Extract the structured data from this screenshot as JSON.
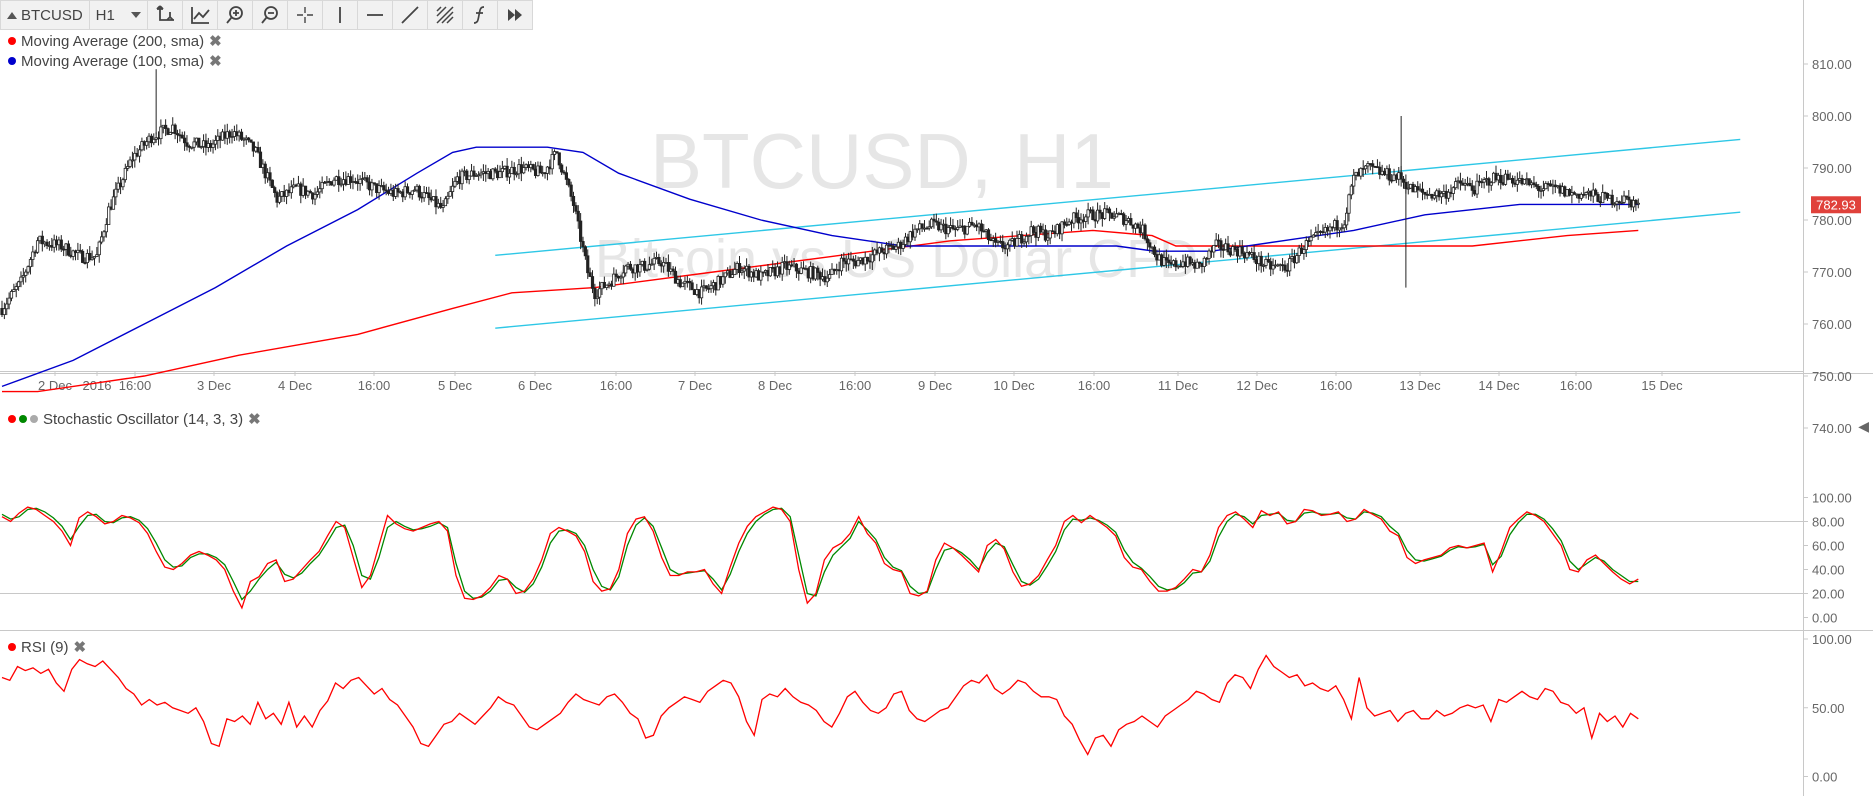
{
  "toolbar": {
    "symbol": "BTCUSD",
    "timeframe": "H1",
    "icons": [
      "crosshair-axis-icon",
      "trend-chart-icon",
      "zoom-in-icon",
      "zoom-out-icon",
      "cursor-cross-icon",
      "vertical-line-icon",
      "horizontal-line-icon",
      "trend-line-icon",
      "fibonacci-icon",
      "function-icon",
      "fast-forward-icon"
    ]
  },
  "legend": {
    "ma200": {
      "label": "Moving Average (200, sma)",
      "color": "#ff0000"
    },
    "ma100": {
      "label": "Moving Average (100, sma)",
      "color": "#0000cc"
    },
    "stoch": {
      "label": "Stochastic Oscillator (14, 3, 3)",
      "colors": [
        "#ff0000",
        "#008800",
        "#aaaaaa"
      ]
    },
    "rsi": {
      "label": "RSI (9)",
      "color": "#ff0000"
    }
  },
  "watermark": {
    "symbol": "BTCUSD, H1",
    "description": "Bitcoin vs US Dollar CFD"
  },
  "chart_data": [
    {
      "type": "candlestick",
      "name": "price",
      "ylim": [
        740,
        815
      ],
      "y_ticks": [
        "810.00",
        "800.00",
        "790.00",
        "780.00",
        "770.00",
        "760.00",
        "750.00",
        "740.00"
      ],
      "last_price": "782.93",
      "last_price_color": "#e0413b",
      "x_ticks": [
        "2 Dec",
        "2016",
        "16:00",
        "3 Dec",
        "4 Dec",
        "16:00",
        "5 Dec",
        "6 Dec",
        "16:00",
        "7 Dec",
        "8 Dec",
        "16:00",
        "9 Dec",
        "10 Dec",
        "16:00",
        "11 Dec",
        "12 Dec",
        "16:00",
        "13 Dec",
        "14 Dec",
        "16:00",
        "15 Dec"
      ],
      "close_path": [
        [
          0,
          763
        ],
        [
          8,
          768
        ],
        [
          15,
          776
        ],
        [
          25,
          775
        ],
        [
          33,
          773
        ],
        [
          40,
          773
        ],
        [
          45,
          782
        ],
        [
          55,
          792
        ],
        [
          63,
          796
        ],
        [
          72,
          798
        ],
        [
          78,
          795
        ],
        [
          87,
          794
        ],
        [
          97,
          797
        ],
        [
          103,
          795
        ],
        [
          107,
          793
        ],
        [
          116,
          784
        ],
        [
          124,
          786
        ],
        [
          132,
          785
        ],
        [
          140,
          788
        ],
        [
          148,
          788
        ],
        [
          158,
          786
        ],
        [
          166,
          785
        ],
        [
          174,
          786
        ],
        [
          180,
          784
        ],
        [
          186,
          782
        ],
        [
          192,
          788
        ],
        [
          200,
          789
        ],
        [
          210,
          789
        ],
        [
          218,
          790
        ],
        [
          228,
          789
        ],
        [
          234,
          793
        ],
        [
          241,
          783
        ],
        [
          247,
          770
        ],
        [
          250,
          766
        ],
        [
          256,
          768
        ],
        [
          263,
          771
        ],
        [
          270,
          771
        ],
        [
          278,
          772
        ],
        [
          286,
          768
        ],
        [
          295,
          766
        ],
        [
          302,
          768
        ],
        [
          311,
          771
        ],
        [
          320,
          769
        ],
        [
          330,
          771
        ],
        [
          340,
          770
        ],
        [
          349,
          769
        ],
        [
          354,
          772
        ],
        [
          360,
          772
        ],
        [
          366,
          773
        ],
        [
          371,
          774
        ],
        [
          378,
          775
        ],
        [
          385,
          778
        ],
        [
          392,
          779
        ],
        [
          402,
          778
        ],
        [
          411,
          779
        ],
        [
          419,
          775
        ],
        [
          425,
          775
        ],
        [
          434,
          778
        ],
        [
          442,
          777
        ],
        [
          450,
          780
        ],
        [
          459,
          781
        ],
        [
          468,
          781
        ],
        [
          475,
          780
        ],
        [
          481,
          778
        ],
        [
          487,
          773
        ],
        [
          492,
          771
        ],
        [
          498,
          772
        ],
        [
          505,
          771
        ],
        [
          512,
          775
        ],
        [
          523,
          774
        ],
        [
          534,
          771
        ],
        [
          542,
          771
        ],
        [
          549,
          775
        ],
        [
          556,
          777
        ],
        [
          566,
          780
        ],
        [
          570,
          788
        ],
        [
          576,
          790
        ],
        [
          582,
          789
        ],
        [
          590,
          788
        ],
        [
          594,
          786
        ],
        [
          600,
          785
        ],
        [
          608,
          785
        ],
        [
          615,
          787
        ],
        [
          621,
          786
        ],
        [
          628,
          788
        ],
        [
          636,
          788
        ],
        [
          643,
          787
        ],
        [
          649,
          786
        ],
        [
          655,
          786
        ],
        [
          662,
          785
        ],
        [
          668,
          785
        ],
        [
          677,
          784
        ],
        [
          684,
          784
        ],
        [
          690,
          783
        ]
      ],
      "ma200": [
        [
          0,
          747
        ],
        [
          15,
          747
        ],
        [
          30,
          748
        ],
        [
          60,
          750
        ],
        [
          100,
          754
        ],
        [
          150,
          758
        ],
        [
          190,
          763
        ],
        [
          215,
          766
        ],
        [
          250,
          767
        ],
        [
          300,
          770
        ],
        [
          350,
          773
        ],
        [
          400,
          776
        ],
        [
          430,
          777
        ],
        [
          460,
          778
        ],
        [
          485,
          777
        ],
        [
          495,
          775
        ],
        [
          540,
          775
        ],
        [
          580,
          775
        ],
        [
          620,
          775
        ],
        [
          660,
          777
        ],
        [
          690,
          778
        ]
      ],
      "ma100": [
        [
          0,
          748
        ],
        [
          30,
          753
        ],
        [
          60,
          760
        ],
        [
          90,
          767
        ],
        [
          120,
          775
        ],
        [
          150,
          782
        ],
        [
          175,
          789
        ],
        [
          190,
          793
        ],
        [
          200,
          794
        ],
        [
          230,
          794
        ],
        [
          245,
          793
        ],
        [
          260,
          789
        ],
        [
          290,
          784
        ],
        [
          320,
          780
        ],
        [
          350,
          777
        ],
        [
          380,
          775
        ],
        [
          410,
          775
        ],
        [
          440,
          775
        ],
        [
          470,
          775
        ],
        [
          486,
          774
        ],
        [
          510,
          774
        ],
        [
          540,
          776
        ],
        [
          570,
          778
        ],
        [
          600,
          781
        ],
        [
          640,
          783
        ],
        [
          670,
          783
        ],
        [
          690,
          783
        ]
      ],
      "channel_upper": {
        "from": [
          208,
          773.2
        ],
        "to": [
          733,
          795.5
        ]
      },
      "channel_lower": {
        "from": [
          208,
          759.2
        ],
        "to": [
          733,
          781.5
        ]
      },
      "high_spikes": [
        [
          65,
          809
        ],
        [
          590,
          800
        ],
        [
          592,
          767
        ]
      ]
    },
    {
      "type": "line",
      "name": "Stochastic Oscillator (14, 3, 3)",
      "ylim": [
        -5,
        103
      ],
      "y_ticks": [
        "100.00",
        "80.00",
        "60.00",
        "40.00",
        "20.00",
        "0.00"
      ],
      "levels": [
        80,
        20
      ],
      "series": [
        {
          "color": "#ff0000",
          "values": [
            84,
            80,
            87,
            92,
            90,
            85,
            80,
            72,
            60,
            83,
            88,
            84,
            78,
            80,
            85,
            83,
            79,
            70,
            55,
            42,
            40,
            45,
            52,
            55,
            52,
            48,
            40,
            22,
            8,
            30,
            34,
            45,
            48,
            30,
            32,
            40,
            48,
            55,
            68,
            80,
            75,
            50,
            25,
            35,
            60,
            85,
            78,
            74,
            72,
            75,
            78,
            80,
            72,
            35,
            16,
            15,
            18,
            25,
            35,
            32,
            20,
            22,
            32,
            48,
            70,
            75,
            72,
            68,
            55,
            30,
            22,
            24,
            40,
            70,
            82,
            84,
            72,
            50,
            35,
            35,
            38,
            38,
            40,
            28,
            20,
            42,
            62,
            76,
            84,
            88,
            92,
            90,
            80,
            40,
            12,
            20,
            48,
            58,
            62,
            70,
            84,
            70,
            62,
            45,
            40,
            38,
            20,
            18,
            22,
            48,
            62,
            58,
            52,
            45,
            38,
            60,
            65,
            57,
            38,
            26,
            28,
            35,
            48,
            60,
            80,
            85,
            79,
            85,
            80,
            75,
            68,
            50,
            42,
            40,
            30,
            22,
            22,
            25,
            32,
            40,
            38,
            52,
            75,
            85,
            88,
            82,
            75,
            89,
            85,
            88,
            78,
            80,
            90,
            89,
            85,
            86,
            88,
            80,
            82,
            90,
            86,
            82,
            72,
            68,
            50,
            45,
            48,
            50,
            52,
            58,
            60,
            58,
            60,
            62,
            38,
            55,
            75,
            82,
            88,
            85,
            80,
            70,
            60,
            40,
            38,
            48,
            52,
            45,
            38,
            32,
            28,
            32
          ]
        },
        {
          "color": "#008800",
          "values": [
            86,
            82,
            84,
            90,
            91,
            88,
            83,
            76,
            65,
            76,
            85,
            86,
            80,
            79,
            83,
            84,
            81,
            74,
            62,
            48,
            42,
            43,
            50,
            53,
            53,
            50,
            44,
            30,
            15,
            22,
            32,
            40,
            46,
            36,
            33,
            37,
            45,
            52,
            63,
            75,
            77,
            60,
            35,
            32,
            50,
            75,
            80,
            76,
            73,
            74,
            76,
            79,
            75,
            45,
            22,
            16,
            17,
            22,
            31,
            32,
            25,
            21,
            28,
            42,
            62,
            72,
            73,
            70,
            60,
            40,
            26,
            23,
            34,
            60,
            77,
            83,
            76,
            58,
            40,
            36,
            37,
            38,
            39,
            32,
            23,
            36,
            55,
            70,
            80,
            86,
            90,
            91,
            84,
            52,
            20,
            18,
            38,
            52,
            59,
            66,
            80,
            73,
            65,
            50,
            42,
            39,
            26,
            20,
            21,
            40,
            56,
            58,
            54,
            48,
            40,
            54,
            62,
            59,
            44,
            30,
            27,
            32,
            43,
            55,
            73,
            82,
            81,
            83,
            81,
            77,
            71,
            56,
            46,
            41,
            34,
            26,
            23,
            24,
            29,
            37,
            38,
            47,
            67,
            80,
            86,
            84,
            78,
            85,
            86,
            87,
            81,
            80,
            87,
            88,
            86,
            86,
            87,
            83,
            82,
            88,
            87,
            84,
            76,
            70,
            56,
            48,
            47,
            49,
            51,
            56,
            59,
            58,
            59,
            61,
            44,
            51,
            69,
            79,
            86,
            86,
            82,
            74,
            64,
            47,
            40,
            45,
            50,
            47,
            40,
            35,
            30,
            30
          ]
        }
      ]
    },
    {
      "type": "line",
      "name": "RSI (9)",
      "ylim": [
        0,
        100
      ],
      "y_ticks": [
        "100.00",
        "50.00",
        "0.00"
      ],
      "series": [
        {
          "color": "#ff0000",
          "values": [
            72,
            70,
            80,
            77,
            79,
            75,
            78,
            68,
            62,
            78,
            85,
            82,
            80,
            84,
            78,
            72,
            64,
            60,
            52,
            56,
            52,
            54,
            50,
            48,
            46,
            50,
            40,
            24,
            22,
            42,
            40,
            44,
            38,
            54,
            42,
            46,
            38,
            54,
            36,
            44,
            36,
            48,
            55,
            68,
            64,
            70,
            72,
            66,
            60,
            64,
            56,
            52,
            44,
            36,
            24,
            22,
            30,
            38,
            40,
            46,
            42,
            38,
            44,
            50,
            58,
            54,
            52,
            44,
            36,
            34,
            38,
            42,
            46,
            54,
            60,
            56,
            54,
            52,
            58,
            60,
            54,
            46,
            42,
            28,
            30,
            44,
            50,
            54,
            58,
            56,
            54,
            62,
            66,
            70,
            68,
            58,
            40,
            30,
            56,
            60,
            58,
            64,
            58,
            54,
            52,
            48,
            40,
            36,
            46,
            58,
            62,
            54,
            48,
            46,
            50,
            60,
            62,
            48,
            42,
            40,
            44,
            48,
            50,
            58,
            66,
            70,
            68,
            74,
            64,
            60,
            64,
            70,
            68,
            62,
            58,
            58,
            56,
            44,
            38,
            26,
            16,
            28,
            30,
            22,
            34,
            38,
            40,
            44,
            40,
            36,
            44,
            48,
            52,
            56,
            62,
            60,
            56,
            54,
            68,
            74,
            72,
            64,
            78,
            88,
            80,
            76,
            72,
            74,
            66,
            68,
            64,
            62,
            66,
            56,
            42,
            72,
            50,
            44,
            46,
            48,
            40,
            46,
            48,
            42,
            42,
            48,
            44,
            46,
            50,
            52,
            50,
            52,
            40,
            56,
            54,
            58,
            62,
            58,
            56,
            64,
            62,
            54,
            52,
            46,
            50,
            28,
            46,
            40,
            44,
            36,
            46,
            42
          ]
        }
      ]
    }
  ]
}
